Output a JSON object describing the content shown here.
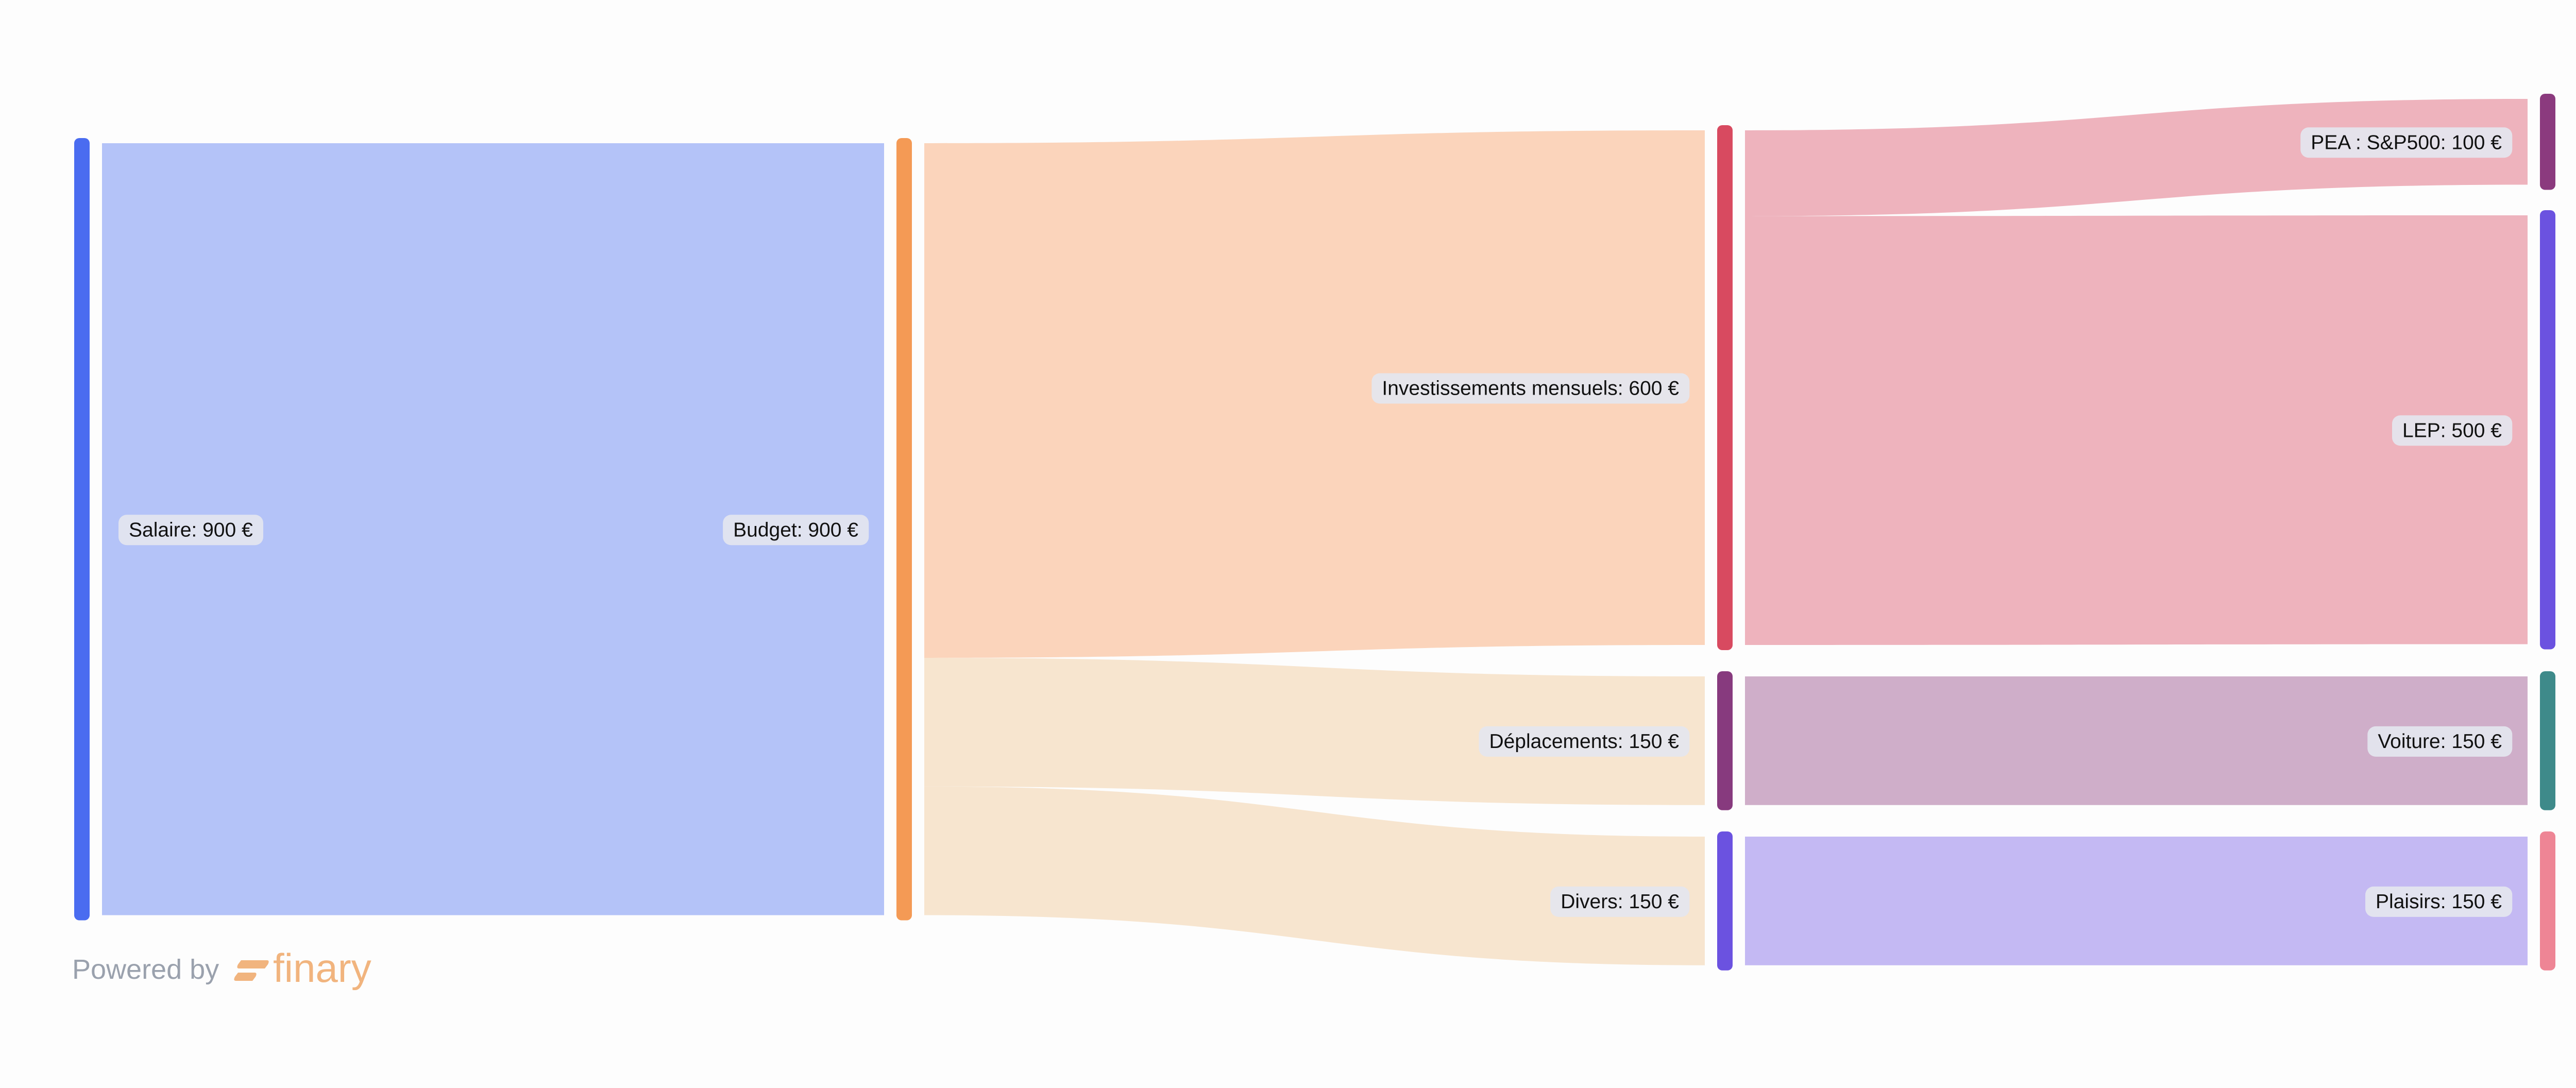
{
  "chart_data": {
    "type": "sankey",
    "title": "",
    "currency": "€",
    "nodes": [
      {
        "id": "salaire",
        "name": "Salaire",
        "value": 900,
        "label": "Salaire: 900 €",
        "column": 0,
        "color": "#4a6cf0"
      },
      {
        "id": "budget",
        "name": "Budget",
        "value": 900,
        "label": "Budget: 900 €",
        "column": 1,
        "color": "#f49a55"
      },
      {
        "id": "investissements",
        "name": "Investissements mensuels",
        "value": 600,
        "label": "Investissements mensuels: 600 €",
        "column": 2,
        "color": "#d84a60"
      },
      {
        "id": "deplacements",
        "name": "Déplacements",
        "value": 150,
        "label": "Déplacements: 150 €",
        "column": 2,
        "color": "#873a7e"
      },
      {
        "id": "divers",
        "name": "Divers",
        "value": 150,
        "label": "Divers: 150 €",
        "column": 2,
        "color": "#6b52e0"
      },
      {
        "id": "pea",
        "name": "PEA : S&P500",
        "value": 100,
        "label": "PEA : S&P500: 100 €",
        "column": 3,
        "color": "#8b3a7e"
      },
      {
        "id": "lep",
        "name": "LEP",
        "value": 500,
        "label": "LEP: 500 €",
        "column": 3,
        "color": "#6b52e0"
      },
      {
        "id": "voiture",
        "name": "Voiture",
        "value": 150,
        "label": "Voiture: 150 €",
        "column": 3,
        "color": "#3e8a8a"
      },
      {
        "id": "plaisirs",
        "name": "Plaisirs",
        "value": 150,
        "label": "Plaisirs: 150 €",
        "column": 3,
        "color": "#ee8595"
      }
    ],
    "links": [
      {
        "source": "salaire",
        "target": "budget",
        "value": 900,
        "color": "#b4c3f8"
      },
      {
        "source": "budget",
        "target": "investissements",
        "value": 600,
        "color": "#fbd4bb"
      },
      {
        "source": "budget",
        "target": "deplacements",
        "value": 150,
        "color": "#f7e5cf"
      },
      {
        "source": "budget",
        "target": "divers",
        "value": 150,
        "color": "#f7e5cf"
      },
      {
        "source": "investissements",
        "target": "pea",
        "value": 100,
        "color": "#eeb3bd"
      },
      {
        "source": "investissements",
        "target": "lep",
        "value": 500,
        "color": "#eeb3bd"
      },
      {
        "source": "deplacements",
        "target": "voiture",
        "value": 150,
        "color": "#cfaec9"
      },
      {
        "source": "divers",
        "target": "plaisirs",
        "value": 150,
        "color": "#c4b9f3"
      }
    ]
  },
  "footer": {
    "powered_by": "Powered by",
    "brand": "finary",
    "brand_color": "#f1b47e"
  }
}
